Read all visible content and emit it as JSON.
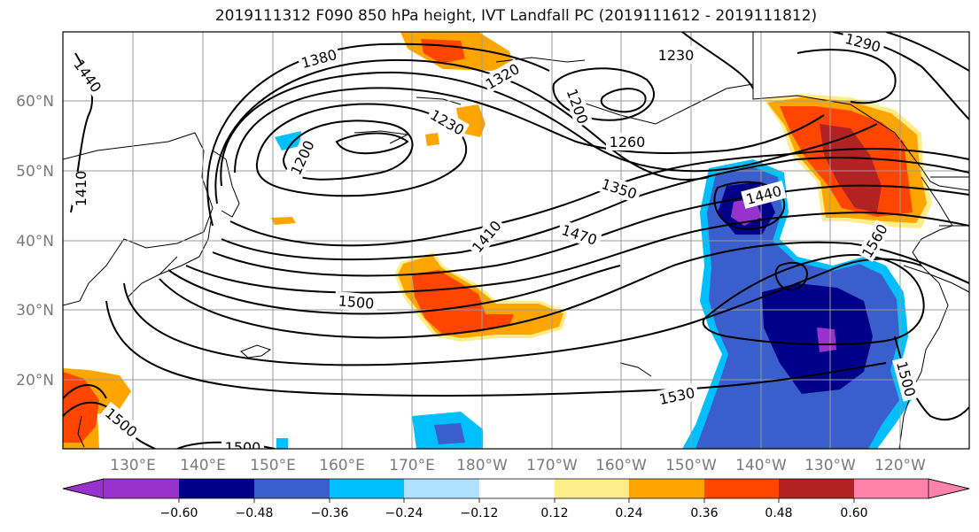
{
  "title": "2019111312 F090 850 hPa height, IVT Landfall PC (2019111612 - 2019111812)",
  "lat_labels": [
    "60°N",
    "50°N",
    "40°N",
    "30°N",
    "20°N"
  ],
  "lon_labels": [
    "130°E",
    "140°E",
    "150°E",
    "160°E",
    "170°E",
    "180°W",
    "170°W",
    "160°W",
    "150°W",
    "140°W",
    "130°W",
    "120°W"
  ],
  "contour_labels": [
    "1440",
    "1380",
    "1320",
    "1230",
    "1290",
    "1200",
    "1260",
    "1230",
    "1200",
    "1410",
    "1350",
    "1440",
    "1410",
    "1470",
    "1560",
    "1500",
    "1500",
    "1530",
    "1500",
    "1500"
  ],
  "colorbar": {
    "ticks": [
      "−0.60",
      "−0.48",
      "−0.36",
      "−0.24",
      "−0.12",
      "0.12",
      "0.24",
      "0.36",
      "0.48",
      "0.60"
    ],
    "colors": [
      "#9932cc",
      "#00008b",
      "#3a5fcd",
      "#00bfff",
      "#b0e2ff",
      "#ffffff",
      "#ffec8b",
      "#ffa500",
      "#ff4500",
      "#b22222",
      "#ff82ab"
    ]
  }
}
